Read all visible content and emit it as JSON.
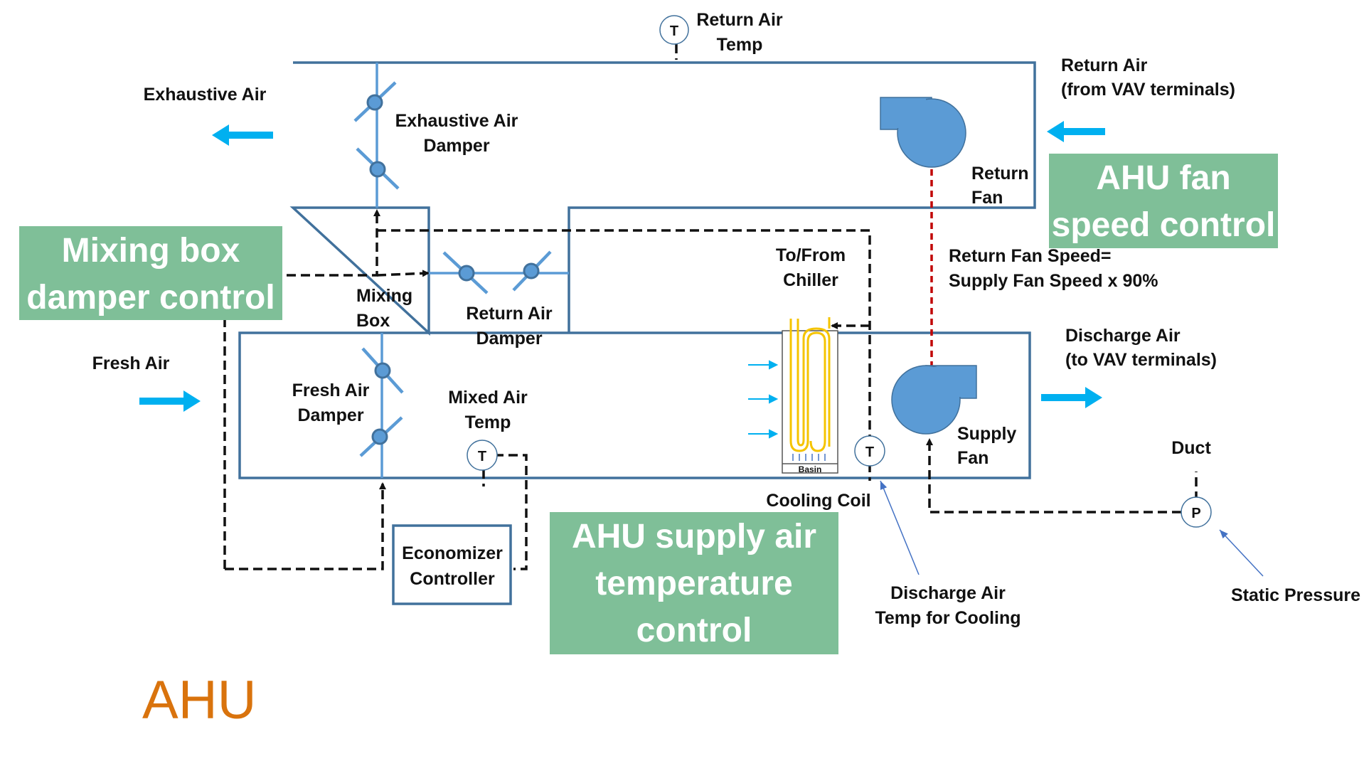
{
  "colors": {
    "duct": "#41719c",
    "damper": "#5b9bd5",
    "arrow": "#00b0f0",
    "box": "#7fbf98",
    "fan_link": "#c00000",
    "coil": "#f5c400",
    "title": "#d9730d"
  },
  "title": "AHU",
  "labels": {
    "exhaust_air": "Exhaustive Air",
    "return_air_temp": [
      "Return Air",
      "Temp"
    ],
    "return_air_vav": [
      "Return Air",
      "(from VAV terminals)"
    ],
    "exhaust_damper": [
      "Exhaustive Air",
      "Damper"
    ],
    "return_fan": [
      "Return",
      "Fan"
    ],
    "mixing_box": [
      "Mixing",
      "Box"
    ],
    "return_damper": [
      "Return Air",
      "Damper"
    ],
    "to_from_chiller": [
      "To/From",
      "Chiller"
    ],
    "fan_speed_rule": [
      "Return Fan Speed=",
      "Supply Fan Speed x 90%"
    ],
    "fresh_air": "Fresh Air",
    "fresh_damper": [
      "Fresh Air",
      "Damper"
    ],
    "mixed_air_temp": [
      "Mixed Air",
      "Temp"
    ],
    "discharge_air": [
      "Discharge Air",
      "(to VAV terminals)"
    ],
    "supply_fan": [
      "Supply",
      "Fan"
    ],
    "duct": "Duct",
    "cooling_coil": "Cooling Coil",
    "basin": "Basin",
    "economizer": [
      "Economizer",
      "Controller"
    ],
    "discharge_temp_cooling": [
      "Discharge Air",
      "Temp for Cooling"
    ],
    "static_pressure": "Static Pressure"
  },
  "symbols": {
    "temperature": "T",
    "pressure": "P"
  },
  "callouts": {
    "fan_speed": [
      "AHU fan",
      "speed control"
    ],
    "mixing": [
      "Mixing box",
      "damper control"
    ],
    "supply_temp": [
      "AHU supply air",
      "temperature",
      "control"
    ]
  }
}
